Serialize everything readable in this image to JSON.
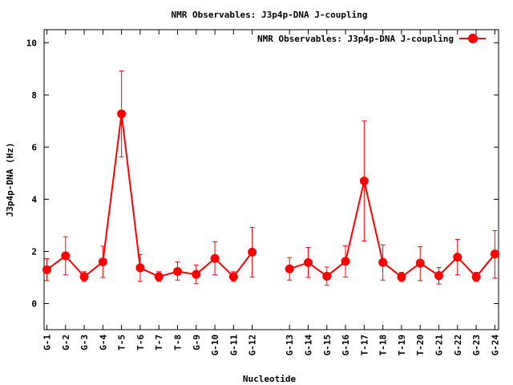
{
  "chart_data": {
    "type": "line",
    "title": "NMR Observables: J3p4p-DNA J-coupling",
    "xlabel": "Nucleotide",
    "ylabel": "J3p4p-DNA (Hz)",
    "ylim": [
      -1,
      10.5
    ],
    "yticks": [
      0,
      2,
      4,
      6,
      8,
      10
    ],
    "grid": false,
    "legend_position": "top-right",
    "categories": [
      "G-1",
      "G-2",
      "G-3",
      "G-4",
      "T-5",
      "T-6",
      "T-7",
      "T-8",
      "G-9",
      "G-10",
      "G-11",
      "G-12",
      "G-13",
      "G-14",
      "G-15",
      "G-16",
      "T-17",
      "T-18",
      "T-19",
      "T-20",
      "G-21",
      "G-22",
      "G-23",
      "G-24"
    ],
    "x": [
      1,
      2,
      3,
      4,
      5,
      6,
      7,
      8,
      9,
      10,
      11,
      12,
      14,
      15,
      16,
      17,
      18,
      19,
      20,
      21,
      22,
      23,
      24,
      25
    ],
    "segments": [
      [
        0,
        11
      ],
      [
        12,
        23
      ]
    ],
    "series": [
      {
        "name": "NMR Observables: J3p4p-DNA J-coupling",
        "color": "#ff0000",
        "values": [
          1.3,
          1.83,
          1.03,
          1.6,
          7.27,
          1.37,
          1.03,
          1.23,
          1.12,
          1.73,
          1.03,
          1.97,
          1.33,
          1.57,
          1.05,
          1.62,
          4.7,
          1.58,
          1.02,
          1.55,
          1.07,
          1.78,
          1.02,
          1.9
        ],
        "error_low": [
          0.88,
          1.1,
          0.85,
          1.0,
          5.62,
          0.85,
          0.85,
          0.9,
          0.76,
          1.1,
          0.85,
          1.02,
          0.9,
          1.0,
          0.7,
          1.02,
          2.4,
          0.9,
          0.85,
          0.88,
          0.75,
          1.1,
          0.85,
          0.98
        ],
        "error_high": [
          1.72,
          2.56,
          1.22,
          2.2,
          8.92,
          1.88,
          1.22,
          1.6,
          1.48,
          2.37,
          1.22,
          2.92,
          1.76,
          2.15,
          1.4,
          2.22,
          7.0,
          2.25,
          1.2,
          2.18,
          1.38,
          2.46,
          1.2,
          2.8
        ]
      }
    ]
  }
}
